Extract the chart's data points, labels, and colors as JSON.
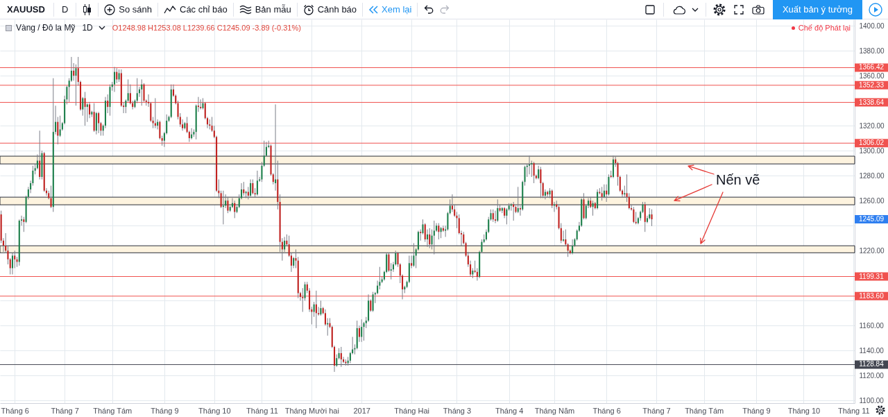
{
  "chart_data": [
    {
      "type": "other",
      "annotations": [
        "XAUUSD",
        "D",
        "So sánh",
        "Các chỉ báo",
        "Bản mẫu",
        "Cảnh báo",
        "Xem lại",
        "Xuất bản ý tưởng"
      ]
    },
    {
      "type": "candlestick",
      "title": "Vàng / Đô la Mỹ",
      "subtitle": "1D",
      "categories": [
        null,
        null,
        null,
        null,
        null,
        null,
        "Tháng 6",
        null,
        null,
        null,
        null,
        null,
        null,
        null,
        null,
        null,
        null,
        null,
        null,
        null,
        null,
        null,
        null,
        null,
        null,
        null,
        null,
        null,
        "Tháng 7",
        null,
        null,
        null,
        null,
        null,
        null,
        null,
        null,
        null,
        null,
        null,
        null,
        null,
        null,
        null,
        null,
        null,
        null,
        null,
        null,
        "Tháng Tám",
        null,
        null,
        null,
        null,
        null,
        null,
        null,
        null,
        null,
        null,
        null,
        null,
        null,
        null,
        null,
        null,
        null,
        null,
        null,
        null,
        null,
        null,
        "Tháng 9",
        null,
        null,
        null,
        null,
        null,
        null,
        null,
        null,
        null,
        null,
        null,
        null,
        null,
        null,
        null,
        null,
        null,
        null,
        null,
        null,
        null,
        "Tháng 10",
        null,
        null,
        null,
        null,
        null,
        null,
        null,
        null,
        null,
        null,
        null,
        null,
        null,
        null,
        null,
        null,
        null,
        null,
        null,
        null,
        "Tháng 11",
        null,
        null,
        null,
        null,
        null,
        null,
        null,
        null,
        null,
        null,
        null,
        null,
        null,
        null,
        null,
        null,
        null,
        null,
        null,
        null,
        null,
        "Tháng Mười hai",
        null,
        null,
        null,
        null,
        null,
        null,
        null,
        null,
        null,
        null,
        null,
        null,
        null,
        null,
        null,
        null,
        null,
        null,
        null,
        null,
        null,
        "2017",
        null,
        null,
        null,
        null,
        null,
        null,
        null,
        null,
        null,
        null,
        null,
        null,
        null,
        null,
        null,
        null,
        null,
        null,
        null,
        null,
        null,
        "Tháng Hai",
        null,
        null,
        null,
        null,
        null,
        null,
        null,
        null,
        null,
        null,
        null,
        null,
        null,
        null,
        null,
        null,
        null,
        null,
        null,
        "Tháng 3",
        null,
        null,
        null,
        null,
        null,
        null,
        null,
        null,
        null,
        null,
        null,
        null,
        null,
        null,
        null,
        null,
        null,
        null,
        null,
        null,
        null,
        null,
        "Tháng 4",
        null,
        null,
        null,
        null,
        null,
        null,
        null,
        null,
        null,
        null,
        null,
        null,
        null,
        null,
        null,
        null,
        null,
        null,
        null,
        "Tháng Năm",
        null,
        null,
        null,
        null,
        null,
        null,
        null,
        null,
        null,
        null,
        null,
        null,
        null,
        null,
        null,
        null,
        null,
        null,
        null,
        null,
        null,
        null,
        "Tháng 6",
        null,
        null,
        null,
        null,
        null,
        null,
        null,
        null,
        null,
        null,
        null,
        null,
        null,
        null,
        null,
        null,
        null,
        null,
        null,
        null,
        null,
        "Tháng 7",
        null,
        null,
        null,
        null,
        null,
        null,
        null,
        null,
        null,
        null,
        null,
        null,
        null,
        null,
        null,
        null,
        null,
        null,
        null,
        null,
        "Tháng Tám",
        null,
        null,
        null,
        null,
        null,
        null,
        null,
        null,
        null,
        null,
        null,
        null,
        null,
        null,
        null,
        null,
        null,
        null,
        null,
        null,
        null,
        null,
        "Tháng 9",
        null,
        null,
        null,
        null,
        null,
        null,
        null,
        null,
        null,
        null,
        null,
        null,
        null,
        null,
        null,
        null,
        null,
        null,
        null,
        null,
        "Tháng 10",
        null,
        null,
        null,
        null,
        null,
        null,
        null,
        null,
        null,
        null,
        null,
        null,
        null,
        null,
        null,
        null,
        null,
        null,
        null,
        null,
        null,
        "Tháng 11"
      ],
      "ohlc": [
        [
          1249,
          1252,
          1226,
          1228
        ],
        [
          1228,
          1230,
          1219,
          1224
        ],
        [
          1224,
          1234,
          1218,
          1220
        ],
        [
          1220,
          1224,
          1209,
          1213
        ],
        [
          1213,
          1214,
          1201,
          1206
        ],
        [
          1206,
          1218,
          1201,
          1216
        ],
        [
          1216,
          1220,
          1206,
          1213
        ],
        [
          1213,
          1215,
          1207,
          1211
        ],
        [
          1211,
          1245,
          1208,
          1244
        ],
        [
          1244,
          1248,
          1240,
          1245
        ],
        [
          1245,
          1247,
          1235,
          1243
        ],
        [
          1243,
          1264,
          1242,
          1263
        ],
        [
          1263,
          1271,
          1261,
          1269
        ],
        [
          1269,
          1276,
          1266,
          1274
        ],
        [
          1274,
          1288,
          1272,
          1284
        ],
        [
          1284,
          1289,
          1281,
          1286
        ],
        [
          1286,
          1297,
          1285,
          1292
        ],
        [
          1292,
          1316,
          1277,
          1279
        ],
        [
          1279,
          1300,
          1277,
          1298
        ],
        [
          1298,
          1299,
          1267,
          1268
        ],
        [
          1268,
          1270,
          1264,
          1266
        ],
        [
          1266,
          1268,
          1261,
          1262
        ],
        [
          1262,
          1272,
          1254,
          1255
        ],
        [
          1255,
          1358,
          1251,
          1315
        ],
        [
          1315,
          1336,
          1313,
          1323
        ],
        [
          1323,
          1327,
          1305,
          1312
        ],
        [
          1312,
          1328,
          1311,
          1317
        ],
        [
          1317,
          1323,
          1316,
          1322
        ],
        [
          1322,
          1344,
          1321,
          1341
        ],
        [
          1341,
          1352,
          1337,
          1351
        ],
        [
          1351,
          1358,
          1339,
          1356
        ],
        [
          1356,
          1375,
          1355,
          1364
        ],
        [
          1364,
          1370,
          1356,
          1360
        ],
        [
          1360,
          1369,
          1336,
          1366
        ],
        [
          1366,
          1375,
          1352,
          1355
        ],
        [
          1355,
          1356,
          1332,
          1333
        ],
        [
          1333,
          1343,
          1328,
          1342
        ],
        [
          1342,
          1347,
          1320,
          1335
        ],
        [
          1335,
          1338,
          1323,
          1337
        ],
        [
          1337,
          1339,
          1326,
          1329
        ],
        [
          1329,
          1332,
          1327,
          1331
        ],
        [
          1331,
          1338,
          1315,
          1316
        ],
        [
          1316,
          1331,
          1313,
          1330
        ],
        [
          1330,
          1331,
          1314,
          1322
        ],
        [
          1322,
          1323,
          1312,
          1316
        ],
        [
          1316,
          1321,
          1312,
          1320
        ],
        [
          1320,
          1343,
          1318,
          1340
        ],
        [
          1340,
          1345,
          1330,
          1335
        ],
        [
          1335,
          1353,
          1328,
          1351
        ],
        [
          1351,
          1355,
          1348,
          1353
        ],
        [
          1353,
          1367,
          1347,
          1363
        ],
        [
          1363,
          1366,
          1354,
          1357
        ],
        [
          1357,
          1365,
          1355,
          1362
        ],
        [
          1362,
          1365,
          1335,
          1336
        ],
        [
          1336,
          1339,
          1330,
          1335
        ],
        [
          1335,
          1341,
          1330,
          1340
        ],
        [
          1340,
          1357,
          1339,
          1346
        ],
        [
          1346,
          1353,
          1337,
          1338
        ],
        [
          1338,
          1340,
          1333,
          1335
        ],
        [
          1335,
          1341,
          1334,
          1340
        ],
        [
          1340,
          1358,
          1338,
          1346
        ],
        [
          1346,
          1351,
          1343,
          1349
        ],
        [
          1349,
          1357,
          1336,
          1353
        ],
        [
          1353,
          1354,
          1339,
          1340
        ],
        [
          1340,
          1341,
          1336,
          1339
        ],
        [
          1339,
          1345,
          1335,
          1338
        ],
        [
          1338,
          1339,
          1323,
          1324
        ],
        [
          1324,
          1327,
          1318,
          1322
        ],
        [
          1322,
          1342,
          1318,
          1320
        ],
        [
          1320,
          1325,
          1317,
          1323
        ],
        [
          1323,
          1324,
          1309,
          1310
        ],
        [
          1310,
          1312,
          1304,
          1308
        ],
        [
          1308,
          1315,
          1303,
          1314
        ],
        [
          1314,
          1329,
          1313,
          1324
        ],
        [
          1324,
          1328,
          1323,
          1327
        ],
        [
          1327,
          1353,
          1326,
          1349
        ],
        [
          1349,
          1353,
          1343,
          1344
        ],
        [
          1344,
          1345,
          1337,
          1338
        ],
        [
          1338,
          1340,
          1325,
          1327
        ],
        [
          1327,
          1330,
          1319,
          1321
        ],
        [
          1321,
          1325,
          1316,
          1318
        ],
        [
          1318,
          1323,
          1317,
          1322
        ],
        [
          1322,
          1327,
          1314,
          1315
        ],
        [
          1315,
          1316,
          1307,
          1310
        ],
        [
          1310,
          1318,
          1309,
          1313
        ],
        [
          1313,
          1317,
          1311,
          1315
        ],
        [
          1315,
          1337,
          1309,
          1336
        ],
        [
          1336,
          1343,
          1331,
          1335
        ],
        [
          1335,
          1341,
          1333,
          1334
        ],
        [
          1334,
          1342,
          1333,
          1338
        ],
        [
          1338,
          1339,
          1325,
          1326
        ],
        [
          1326,
          1327,
          1318,
          1321
        ],
        [
          1321,
          1325,
          1317,
          1320
        ],
        [
          1320,
          1327,
          1315,
          1316
        ],
        [
          1316,
          1320,
          1310,
          1311
        ],
        [
          1311,
          1312,
          1267,
          1268
        ],
        [
          1268,
          1277,
          1262,
          1266
        ],
        [
          1266,
          1268,
          1254,
          1255
        ],
        [
          1255,
          1268,
          1241,
          1256
        ],
        [
          1256,
          1265,
          1254,
          1260
        ],
        [
          1260,
          1263,
          1250,
          1252
        ],
        [
          1252,
          1256,
          1251,
          1255
        ],
        [
          1255,
          1262,
          1254,
          1258
        ],
        [
          1258,
          1260,
          1246,
          1251
        ],
        [
          1251,
          1256,
          1250,
          1255
        ],
        [
          1255,
          1265,
          1254,
          1262
        ],
        [
          1262,
          1274,
          1261,
          1269
        ],
        [
          1269,
          1275,
          1264,
          1266
        ],
        [
          1266,
          1268,
          1262,
          1267
        ],
        [
          1267,
          1271,
          1261,
          1264
        ],
        [
          1264,
          1277,
          1263,
          1274
        ],
        [
          1274,
          1277,
          1265,
          1266
        ],
        [
          1266,
          1270,
          1263,
          1265
        ],
        [
          1265,
          1284,
          1264,
          1276
        ],
        [
          1276,
          1279,
          1275,
          1277
        ],
        [
          1277,
          1291,
          1275,
          1288
        ],
        [
          1288,
          1308,
          1287,
          1296
        ],
        [
          1296,
          1307,
          1295,
          1303
        ],
        [
          1303,
          1308,
          1302,
          1304
        ],
        [
          1304,
          1305,
          1280,
          1281
        ],
        [
          1281,
          1282,
          1273,
          1275
        ],
        [
          1274,
          1337,
          1268,
          1277
        ],
        [
          1277,
          1292,
          1253,
          1259
        ],
        [
          1259,
          1265,
          1219,
          1227
        ],
        [
          1227,
          1230,
          1212,
          1221
        ],
        [
          1221,
          1231,
          1219,
          1228
        ],
        [
          1228,
          1233,
          1224,
          1225
        ],
        [
          1225,
          1232,
          1215,
          1216
        ],
        [
          1216,
          1218,
          1203,
          1208
        ],
        [
          1208,
          1215,
          1206,
          1214
        ],
        [
          1214,
          1221,
          1206,
          1212
        ],
        [
          1212,
          1215,
          1182,
          1186
        ],
        [
          1186,
          1187,
          1180,
          1183
        ],
        [
          1183,
          1190,
          1171,
          1182
        ],
        [
          1182,
          1195,
          1180,
          1193
        ],
        [
          1193,
          1195,
          1186,
          1188
        ],
        [
          1188,
          1190,
          1171,
          1173
        ],
        [
          1173,
          1175,
          1161,
          1171
        ],
        [
          1171,
          1179,
          1167,
          1177
        ],
        [
          1177,
          1188,
          1158,
          1170
        ],
        [
          1170,
          1175,
          1168,
          1169
        ],
        [
          1169,
          1180,
          1168,
          1174
        ],
        [
          1174,
          1175,
          1169,
          1170
        ],
        [
          1170,
          1173,
          1160,
          1161
        ],
        [
          1161,
          1166,
          1152,
          1162
        ],
        [
          1162,
          1166,
          1158,
          1159
        ],
        [
          1159,
          1160,
          1142,
          1143
        ],
        [
          1143,
          1144,
          1123,
          1128
        ],
        [
          1128,
          1137,
          1127,
          1134
        ],
        [
          1134,
          1142,
          1133,
          1138
        ],
        [
          1138,
          1143,
          1127,
          1133
        ],
        [
          1133,
          1135,
          1130,
          1131
        ],
        [
          1131,
          1133,
          1128,
          1130
        ],
        [
          1130,
          1135,
          1128,
          1132
        ],
        [
          1132,
          1139,
          1130,
          1138
        ],
        [
          1138,
          1151,
          1137,
          1141
        ],
        [
          1141,
          1145,
          1137,
          1142
        ],
        [
          1142,
          1164,
          1141,
          1158
        ],
        [
          1158,
          1160,
          1147,
          1151
        ],
        [
          1151,
          1165,
          1147,
          1159
        ],
        [
          1159,
          1163,
          1148,
          1162
        ],
        [
          1162,
          1167,
          1158,
          1164
        ],
        [
          1164,
          1185,
          1163,
          1180
        ],
        [
          1180,
          1181,
          1171,
          1172
        ],
        [
          1172,
          1187,
          1171,
          1185
        ],
        [
          1185,
          1187,
          1178,
          1186
        ],
        [
          1186,
          1196,
          1185,
          1192
        ],
        [
          1192,
          1207,
          1189,
          1195
        ],
        [
          1195,
          1199,
          1194,
          1197
        ],
        [
          1197,
          1204,
          1196,
          1203
        ],
        [
          1203,
          1218,
          1202,
          1217
        ],
        [
          1217,
          1218,
          1203,
          1204
        ],
        [
          1204,
          1210,
          1197,
          1205
        ],
        [
          1205,
          1211,
          1203,
          1209
        ],
        [
          1209,
          1220,
          1208,
          1218
        ],
        [
          1218,
          1219,
          1207,
          1209
        ],
        [
          1209,
          1210,
          1194,
          1200
        ],
        [
          1200,
          1201,
          1181,
          1189
        ],
        [
          1189,
          1192,
          1186,
          1191
        ],
        [
          1191,
          1196,
          1190,
          1195
        ],
        [
          1195,
          1216,
          1194,
          1210
        ],
        [
          1210,
          1216,
          1206,
          1208
        ],
        [
          1208,
          1226,
          1207,
          1216
        ],
        [
          1216,
          1222,
          1206,
          1221
        ],
        [
          1221,
          1236,
          1220,
          1235
        ],
        [
          1235,
          1237,
          1228,
          1234
        ],
        [
          1234,
          1245,
          1233,
          1241
        ],
        [
          1241,
          1242,
          1227,
          1229
        ],
        [
          1229,
          1237,
          1223,
          1233
        ],
        [
          1233,
          1238,
          1222,
          1225
        ],
        [
          1225,
          1237,
          1221,
          1232
        ],
        [
          1232,
          1244,
          1217,
          1236
        ],
        [
          1236,
          1242,
          1235,
          1240
        ],
        [
          1240,
          1242,
          1229,
          1235
        ],
        [
          1235,
          1239,
          1230,
          1238
        ],
        [
          1238,
          1240,
          1235,
          1236
        ],
        [
          1236,
          1240,
          1231,
          1237
        ],
        [
          1237,
          1251,
          1236,
          1250
        ],
        [
          1250,
          1261,
          1249,
          1256
        ],
        [
          1256,
          1265,
          1251,
          1253
        ],
        [
          1253,
          1257,
          1247,
          1248
        ],
        [
          1248,
          1251,
          1238,
          1246
        ],
        [
          1246,
          1249,
          1233,
          1234
        ],
        [
          1234,
          1236,
          1224,
          1233
        ],
        [
          1233,
          1235,
          1225,
          1226
        ],
        [
          1226,
          1227,
          1215,
          1216
        ],
        [
          1216,
          1219,
          1207,
          1209
        ],
        [
          1209,
          1212,
          1199,
          1201
        ],
        [
          1201,
          1206,
          1198,
          1204
        ],
        [
          1204,
          1212,
          1202,
          1203
        ],
        [
          1203,
          1206,
          1196,
          1199
        ],
        [
          1199,
          1220,
          1198,
          1219
        ],
        [
          1219,
          1229,
          1218,
          1227
        ],
        [
          1227,
          1233,
          1226,
          1229
        ],
        [
          1229,
          1237,
          1228,
          1235
        ],
        [
          1235,
          1247,
          1234,
          1245
        ],
        [
          1245,
          1253,
          1244,
          1250
        ],
        [
          1250,
          1253,
          1243,
          1245
        ],
        [
          1245,
          1252,
          1242,
          1244
        ],
        [
          1244,
          1261,
          1243,
          1254
        ],
        [
          1254,
          1257,
          1251,
          1252
        ],
        [
          1252,
          1255,
          1250,
          1254
        ],
        [
          1254,
          1255,
          1246,
          1248
        ],
        [
          1248,
          1254,
          1241,
          1253
        ],
        [
          1253,
          1258,
          1252,
          1256
        ],
        [
          1256,
          1258,
          1252,
          1257
        ],
        [
          1257,
          1259,
          1244,
          1255
        ],
        [
          1255,
          1256,
          1250,
          1251
        ],
        [
          1251,
          1271,
          1250,
          1254
        ],
        [
          1254,
          1256,
          1248,
          1253
        ],
        [
          1253,
          1276,
          1252,
          1275
        ],
        [
          1275,
          1288,
          1272,
          1287
        ],
        [
          1287,
          1289,
          1279,
          1288
        ],
        [
          1288,
          1296,
          1281,
          1289
        ],
        [
          1289,
          1292,
          1279,
          1290
        ],
        [
          1290,
          1291,
          1274,
          1280
        ],
        [
          1280,
          1281,
          1277,
          1278
        ],
        [
          1278,
          1288,
          1277,
          1285
        ],
        [
          1285,
          1287,
          1262,
          1274
        ],
        [
          1274,
          1275,
          1262,
          1264
        ],
        [
          1264,
          1269,
          1261,
          1267
        ],
        [
          1267,
          1268,
          1263,
          1265
        ],
        [
          1265,
          1270,
          1262,
          1268
        ],
        [
          1268,
          1269,
          1254,
          1256
        ],
        [
          1256,
          1259,
          1251,
          1257
        ],
        [
          1257,
          1260,
          1253,
          1255
        ],
        [
          1255,
          1256,
          1237,
          1238
        ],
        [
          1238,
          1242,
          1226,
          1228
        ],
        [
          1228,
          1236,
          1227,
          1229
        ],
        [
          1229,
          1237,
          1224,
          1225
        ],
        [
          1225,
          1226,
          1215,
          1220
        ],
        [
          1220,
          1221,
          1217,
          1218
        ],
        [
          1218,
          1229,
          1217,
          1224
        ],
        [
          1224,
          1230,
          1223,
          1229
        ],
        [
          1229,
          1237,
          1228,
          1236
        ],
        [
          1236,
          1243,
          1235,
          1240
        ],
        [
          1240,
          1262,
          1239,
          1261
        ],
        [
          1261,
          1266,
          1245,
          1246
        ],
        [
          1246,
          1257,
          1245,
          1256
        ],
        [
          1256,
          1262,
          1254,
          1260
        ],
        [
          1260,
          1263,
          1254,
          1255
        ],
        [
          1255,
          1260,
          1248,
          1258
        ],
        [
          1258,
          1259,
          1253,
          1254
        ],
        [
          1254,
          1269,
          1253,
          1267
        ],
        [
          1267,
          1270,
          1265,
          1266
        ],
        [
          1266,
          1271,
          1260,
          1263
        ],
        [
          1263,
          1273,
          1262,
          1268
        ],
        [
          1268,
          1273,
          1259,
          1265
        ],
        [
          1265,
          1281,
          1264,
          1279
        ],
        [
          1280,
          1284,
          1278,
          1279
        ],
        [
          1279,
          1296,
          1278,
          1293
        ],
        [
          1293,
          1295,
          1287,
          1290
        ],
        [
          1290,
          1291,
          1272,
          1279
        ],
        [
          1279,
          1280,
          1267,
          1268
        ],
        [
          1268,
          1269,
          1263,
          1265
        ],
        [
          1265,
          1272,
          1263,
          1266
        ],
        [
          1266,
          1281,
          1259,
          1263
        ],
        [
          1263,
          1266,
          1253,
          1254
        ],
        [
          1254,
          1257,
          1252,
          1253
        ],
        [
          1253,
          1255,
          1242,
          1243
        ],
        [
          1243,
          1251,
          1241,
          1242
        ],
        [
          1242,
          1247,
          1241,
          1246
        ],
        [
          1246,
          1252,
          1244,
          1251
        ],
        [
          1251,
          1259,
          1250,
          1257
        ],
        [
          1257,
          1259,
          1235,
          1243
        ],
        [
          1243,
          1248,
          1242,
          1246
        ],
        [
          1246,
          1254,
          1245,
          1249
        ],
        [
          1248.98,
          1253.08,
          1239.66,
          1245.09
        ],
        null,
        null,
        null,
        null,
        null,
        null,
        null,
        null,
        null,
        null,
        null,
        null,
        null,
        null,
        null,
        null,
        null,
        null,
        null,
        null,
        null,
        null,
        null,
        null,
        null,
        null,
        null,
        null,
        null,
        null,
        null,
        null,
        null,
        null,
        null,
        null,
        null,
        null,
        null,
        null,
        null,
        null,
        null,
        null,
        null,
        null,
        null,
        null,
        null,
        null,
        null,
        null,
        null,
        null,
        null,
        null,
        null,
        null,
        null,
        null,
        null,
        null,
        null,
        null,
        null,
        null,
        null,
        null,
        null,
        null,
        null,
        null,
        null,
        null,
        null,
        null,
        null,
        null,
        null,
        null,
        null,
        null,
        null,
        null,
        null,
        null,
        null,
        null,
        null
      ],
      "ylim": [
        1098,
        1405
      ],
      "yticks": [
        {
          "value": 1100,
          "label": "1100.00"
        },
        {
          "value": 1120,
          "label": "1120.00"
        },
        {
          "value": 1140,
          "label": "1140.00"
        },
        {
          "value": 1160,
          "label": "1160.00"
        },
        {
          "value": 1180,
          "label": null
        },
        {
          "value": 1220,
          "label": "1220.00"
        },
        {
          "value": 1240,
          "label": null
        },
        {
          "value": 1260,
          "label": "1260.00"
        },
        {
          "value": 1280,
          "label": "1280.00"
        },
        {
          "value": 1300,
          "label": "1300.00"
        },
        {
          "value": 1320,
          "label": "1320.00"
        },
        {
          "value": 1360,
          "label": "1360.00"
        },
        {
          "value": 1380,
          "label": "1380.00"
        },
        {
          "value": 1400,
          "label": "1400.00"
        }
      ],
      "grid": true,
      "ref_lines": [
        {
          "axis": "y",
          "value": 1366.42,
          "label": "1366.42",
          "color": "#f0524f"
        },
        {
          "axis": "y",
          "value": 1352.33,
          "label": "1352.33",
          "color": "#f0524f"
        },
        {
          "axis": "y",
          "value": 1338.64,
          "label": "1338.64",
          "color": "#f0524f"
        },
        {
          "axis": "y",
          "value": 1306.02,
          "label": "1306.02",
          "color": "#f0524f"
        },
        {
          "axis": "y",
          "value": 1199.31,
          "label": "1199.31",
          "color": "#f0524f"
        },
        {
          "axis": "y",
          "value": 1183.6,
          "label": "1183.60",
          "color": "#f0524f"
        },
        {
          "axis": "y",
          "value": 1128.84,
          "label": "1128.84",
          "color": "#434651"
        }
      ],
      "bands": [
        {
          "axis": "y",
          "from": 1289.4,
          "to": 1295.6,
          "color": "#fdf3df"
        },
        {
          "axis": "y",
          "from": 1256.7,
          "to": 1262.8,
          "color": "#fdf3df"
        },
        {
          "axis": "y",
          "from": 1218.3,
          "to": 1223.9,
          "color": "#fdf3df"
        }
      ],
      "annotations": [
        "O1248.98 H1253.08 L1239.66 C1245.09 -3.89 (-0.31%)",
        "Chế độ Phát lại",
        "1245.09",
        {
          "text": "Nến vẽ",
          "y": 1260
        }
      ]
    }
  ]
}
